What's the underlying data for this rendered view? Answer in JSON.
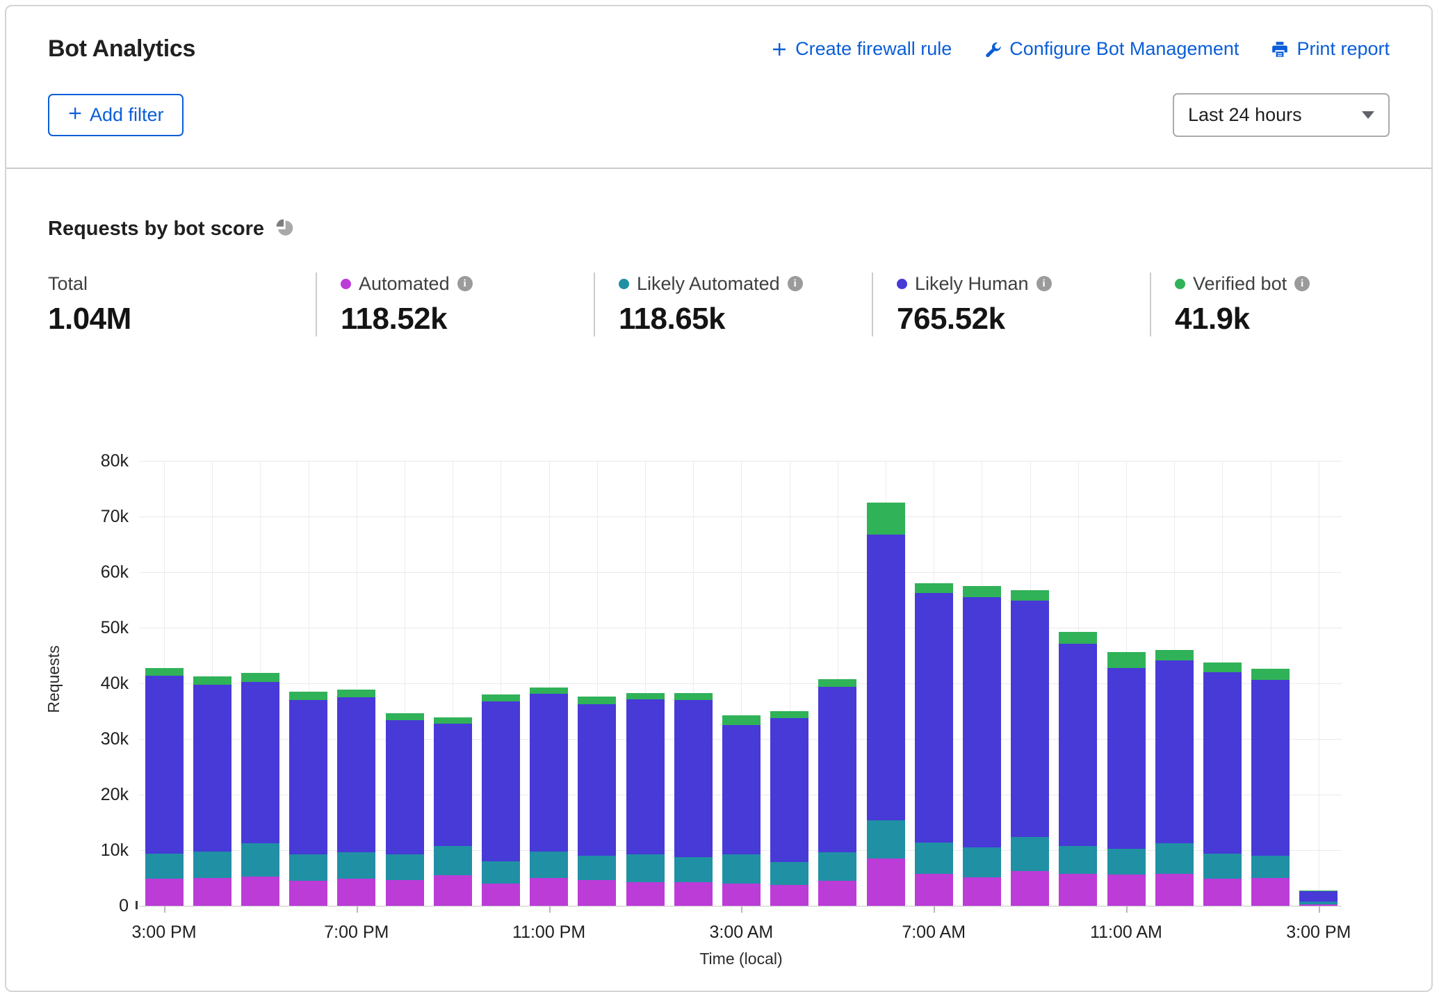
{
  "header": {
    "title": "Bot Analytics",
    "actions": [
      {
        "icon": "plus-icon",
        "label": "Create firewall rule"
      },
      {
        "icon": "wrench-icon",
        "label": "Configure Bot Management"
      },
      {
        "icon": "printer-icon",
        "label": "Print report"
      }
    ],
    "add_filter_label": "Add filter",
    "time_range_value": "Last 24 hours"
  },
  "section": {
    "title": "Requests by bot score",
    "stats": [
      {
        "label": "Total",
        "value": "1.04M",
        "color": null,
        "info": false
      },
      {
        "label": "Automated",
        "value": "118.52k",
        "color": "#bc3cd8",
        "info": true
      },
      {
        "label": "Likely Automated",
        "value": "118.65k",
        "color": "#2090a4",
        "info": true
      },
      {
        "label": "Likely Human",
        "value": "765.52k",
        "color": "#473ad7",
        "info": true
      },
      {
        "label": "Verified bot",
        "value": "41.9k",
        "color": "#30b258",
        "info": true
      }
    ]
  },
  "chart_data": {
    "type": "bar",
    "stacked": true,
    "title": "Requests by bot score",
    "xlabel": "Time (local)",
    "ylabel": "Requests",
    "ylim": [
      0,
      80000
    ],
    "grid": true,
    "y_ticks": [
      "0",
      "10k",
      "20k",
      "30k",
      "40k",
      "50k",
      "60k",
      "70k",
      "80k"
    ],
    "x_tick_labels": [
      {
        "index": 0,
        "label": "3:00 PM"
      },
      {
        "index": 4,
        "label": "7:00 PM"
      },
      {
        "index": 8,
        "label": "11:00 PM"
      },
      {
        "index": 12,
        "label": "3:00 AM"
      },
      {
        "index": 16,
        "label": "7:00 AM"
      },
      {
        "index": 20,
        "label": "11:00 AM"
      },
      {
        "index": 24,
        "label": "3:00 PM"
      }
    ],
    "series_order": [
      "automated",
      "likely_automated",
      "likely_human",
      "verified_bot"
    ],
    "series_labels": {
      "automated": "Automated",
      "likely_automated": "Likely Automated",
      "likely_human": "Likely Human",
      "verified_bot": "Verified bot"
    },
    "colors": {
      "automated": "#bc3cd8",
      "likely_automated": "#2090a4",
      "likely_human": "#473ad7",
      "verified_bot": "#30b258"
    },
    "bars": [
      {
        "automated": 4900,
        "likely_automated": 4500,
        "likely_human": 32000,
        "verified_bot": 1300
      },
      {
        "automated": 5000,
        "likely_automated": 4700,
        "likely_human": 30100,
        "verified_bot": 1500
      },
      {
        "automated": 5200,
        "likely_automated": 6000,
        "likely_human": 29000,
        "verified_bot": 1700
      },
      {
        "automated": 4500,
        "likely_automated": 4800,
        "likely_human": 27700,
        "verified_bot": 1500
      },
      {
        "automated": 4900,
        "likely_automated": 4700,
        "likely_human": 27900,
        "verified_bot": 1400
      },
      {
        "automated": 4600,
        "likely_automated": 4700,
        "likely_human": 24100,
        "verified_bot": 1200
      },
      {
        "automated": 5500,
        "likely_automated": 5300,
        "likely_human": 21900,
        "verified_bot": 1200
      },
      {
        "automated": 4000,
        "likely_automated": 4000,
        "likely_human": 28800,
        "verified_bot": 1200
      },
      {
        "automated": 5000,
        "likely_automated": 4700,
        "likely_human": 28400,
        "verified_bot": 1200
      },
      {
        "automated": 4600,
        "likely_automated": 4400,
        "likely_human": 27300,
        "verified_bot": 1300
      },
      {
        "automated": 4200,
        "likely_automated": 5100,
        "likely_human": 27800,
        "verified_bot": 1200
      },
      {
        "automated": 4200,
        "likely_automated": 4600,
        "likely_human": 28200,
        "verified_bot": 1300
      },
      {
        "automated": 4000,
        "likely_automated": 5300,
        "likely_human": 23200,
        "verified_bot": 1800
      },
      {
        "automated": 3800,
        "likely_automated": 4100,
        "likely_human": 25900,
        "verified_bot": 1200
      },
      {
        "automated": 4500,
        "likely_automated": 5100,
        "likely_human": 29800,
        "verified_bot": 1300
      },
      {
        "automated": 8500,
        "likely_automated": 6900,
        "likely_human": 51300,
        "verified_bot": 5800
      },
      {
        "automated": 5800,
        "likely_automated": 5600,
        "likely_human": 44800,
        "verified_bot": 1800
      },
      {
        "automated": 5100,
        "likely_automated": 5400,
        "likely_human": 45000,
        "verified_bot": 2000
      },
      {
        "automated": 6300,
        "likely_automated": 6100,
        "likely_human": 42500,
        "verified_bot": 1900
      },
      {
        "automated": 5800,
        "likely_automated": 4900,
        "likely_human": 36400,
        "verified_bot": 2100
      },
      {
        "automated": 5600,
        "likely_automated": 4600,
        "likely_human": 32600,
        "verified_bot": 2800
      },
      {
        "automated": 5800,
        "likely_automated": 5500,
        "likely_human": 32800,
        "verified_bot": 1900
      },
      {
        "automated": 4900,
        "likely_automated": 4500,
        "likely_human": 32600,
        "verified_bot": 1800
      },
      {
        "automated": 5000,
        "likely_automated": 4000,
        "likely_human": 31600,
        "verified_bot": 2000
      },
      {
        "automated": 300,
        "likely_automated": 400,
        "likely_human": 2000,
        "verified_bot": 100
      }
    ]
  }
}
